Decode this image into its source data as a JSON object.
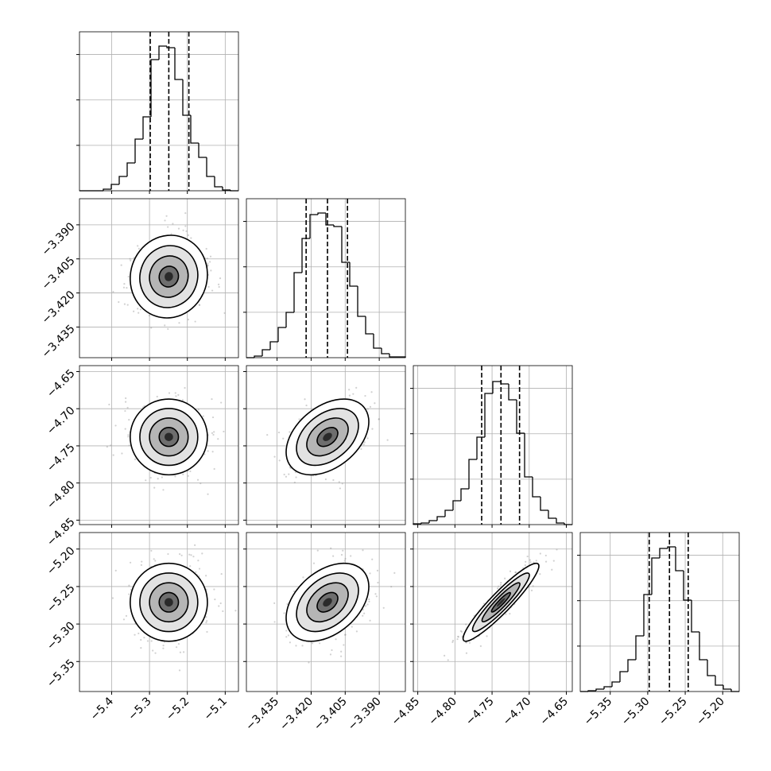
{
  "chart_data": {
    "type": "corner",
    "hist_ylim": [
      0,
      7000
    ],
    "hist_yticks": [
      2000,
      4000,
      6000
    ],
    "grid": true,
    "color": "#000000",
    "params": [
      {
        "lim": [
          -5.485,
          -5.065
        ],
        "ticks": [
          {
            "value": -5.4,
            "label": "−5.4"
          },
          {
            "value": -5.3,
            "label": "−5.3"
          },
          {
            "value": -5.2,
            "label": "−5.2"
          },
          {
            "value": -5.1,
            "label": "−5.1"
          }
        ],
        "quantiles": [
          -5.298,
          -5.249,
          -5.196
        ],
        "bins": [
          -5.485,
          -5.464,
          -5.443,
          -5.422,
          -5.401,
          -5.38,
          -5.359,
          -5.338,
          -5.317,
          -5.296,
          -5.275,
          -5.254,
          -5.233,
          -5.212,
          -5.191,
          -5.17,
          -5.149,
          -5.128,
          -5.107,
          -5.086,
          -5.065
        ],
        "counts": [
          0,
          0,
          0,
          70,
          280,
          630,
          1225,
          2275,
          3255,
          5775,
          6370,
          6300,
          4900,
          3325,
          2100,
          1470,
          630,
          175,
          35,
          0
        ]
      },
      {
        "lim": [
          -3.4485,
          -3.3785
        ],
        "ticks": [
          {
            "value": -3.435,
            "label": "−3.435"
          },
          {
            "value": -3.42,
            "label": "−3.420"
          },
          {
            "value": -3.405,
            "label": "−3.405"
          },
          {
            "value": -3.39,
            "label": "−3.390"
          }
        ],
        "quantiles": [
          -3.4222,
          -3.4128,
          -3.404
        ],
        "bins": [
          -3.4485,
          -3.445,
          -3.4415,
          -3.438,
          -3.4345,
          -3.431,
          -3.4275,
          -3.424,
          -3.4205,
          -3.417,
          -3.4135,
          -3.41,
          -3.4065,
          -3.403,
          -3.3995,
          -3.396,
          -3.3925,
          -3.389,
          -3.3855,
          -3.382,
          -3.3785
        ],
        "counts": [
          0,
          70,
          350,
          700,
          1330,
          1995,
          3745,
          5250,
          6300,
          6370,
          5845,
          5775,
          4200,
          3150,
          1820,
          1050,
          420,
          175,
          35,
          35
        ]
      },
      {
        "lim": [
          -4.856,
          -4.642
        ],
        "ticks": [
          {
            "value": -4.85,
            "label": "−4.85"
          },
          {
            "value": -4.8,
            "label": "−4.80"
          },
          {
            "value": -4.75,
            "label": "−4.75"
          },
          {
            "value": -4.7,
            "label": "−4.70"
          },
          {
            "value": -4.65,
            "label": "−4.65"
          }
        ],
        "quantiles": [
          -4.764,
          -4.738,
          -4.713
        ],
        "bins": [
          -4.856,
          -4.8453,
          -4.8346,
          -4.8239,
          -4.8132,
          -4.8025,
          -4.7918,
          -4.7811,
          -4.7704,
          -4.7597,
          -4.749,
          -4.7383,
          -4.7276,
          -4.7169,
          -4.7062,
          -4.6955,
          -4.6848,
          -4.6741,
          -4.6634,
          -4.6527,
          -4.642
        ],
        "counts": [
          35,
          70,
          175,
          350,
          630,
          1050,
          1575,
          2870,
          3850,
          5775,
          6300,
          6195,
          5495,
          4025,
          2100,
          1225,
          630,
          280,
          70,
          0
        ]
      },
      {
        "lim": [
          -5.39,
          -5.178
        ],
        "ticks": [
          {
            "value": -5.35,
            "label": "−5.35"
          },
          {
            "value": -5.3,
            "label": "−5.30"
          },
          {
            "value": -5.25,
            "label": "−5.25"
          },
          {
            "value": -5.2,
            "label": "−5.20"
          }
        ],
        "quantiles": [
          -5.298,
          -5.271,
          -5.246
        ],
        "bins": [
          -5.39,
          -5.3794,
          -5.3688,
          -5.3582,
          -5.3476,
          -5.337,
          -5.3264,
          -5.3158,
          -5.3052,
          -5.2946,
          -5.284,
          -5.2734,
          -5.2628,
          -5.2522,
          -5.2416,
          -5.231,
          -5.2204,
          -5.2098,
          -5.1992,
          -5.1886,
          -5.178
        ],
        "counts": [
          0,
          35,
          105,
          210,
          420,
          875,
          1400,
          2450,
          4270,
          5880,
          6300,
          6370,
          5320,
          4025,
          2625,
          1400,
          700,
          280,
          105,
          0
        ]
      }
    ],
    "panels": [
      {
        "x": 0,
        "y": 1,
        "corr": 0.05
      },
      {
        "x": 0,
        "y": 2,
        "corr": 0.0
      },
      {
        "x": 1,
        "y": 2,
        "corr": 0.4
      },
      {
        "x": 0,
        "y": 3,
        "corr": 0.0
      },
      {
        "x": 1,
        "y": 3,
        "corr": 0.4
      },
      {
        "x": 2,
        "y": 3,
        "corr": 0.93
      }
    ]
  }
}
